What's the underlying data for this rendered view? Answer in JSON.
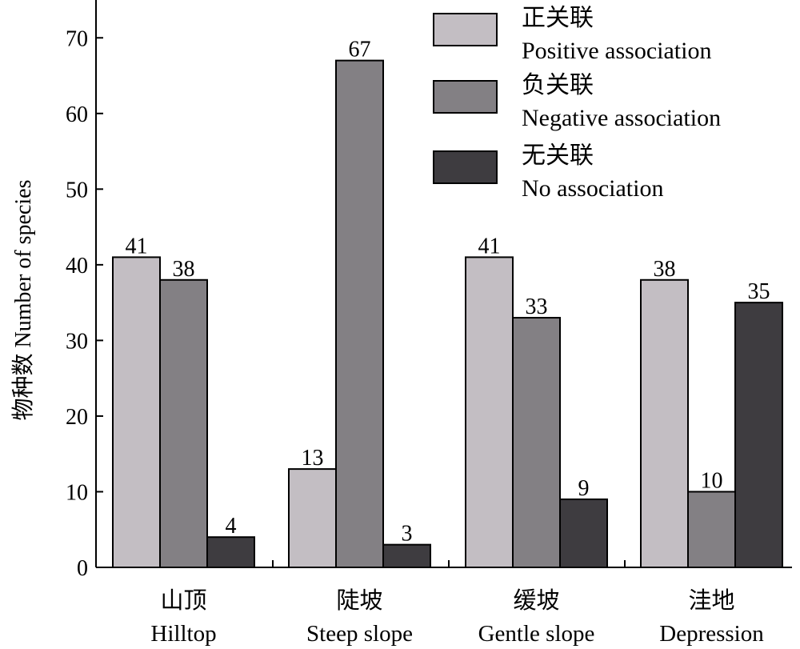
{
  "chart_data": {
    "type": "bar",
    "ylabel": "物种数 Number of species",
    "xlabel": "",
    "ylim": [
      0,
      75
    ],
    "yticks": [
      0,
      10,
      20,
      30,
      40,
      50,
      60,
      70
    ],
    "grid": false,
    "legend_position": "top-right",
    "categories": [
      {
        "zh": "山顶",
        "en": "Hilltop"
      },
      {
        "zh": "陡坡",
        "en": "Steep slope"
      },
      {
        "zh": "缓坡",
        "en": "Gentle slope"
      },
      {
        "zh": "洼地",
        "en": "Depression"
      }
    ],
    "series": [
      {
        "name_zh": "正关联",
        "name_en": "Positive association",
        "color": "#c3bec3",
        "values": [
          41,
          13,
          41,
          38
        ]
      },
      {
        "name_zh": "负关联",
        "name_en": "Negative association",
        "color": "#838084",
        "values": [
          38,
          67,
          33,
          10
        ]
      },
      {
        "name_zh": "无关联",
        "name_en": "No association",
        "color": "#3e3c40",
        "values": [
          4,
          3,
          9,
          35
        ]
      }
    ]
  }
}
